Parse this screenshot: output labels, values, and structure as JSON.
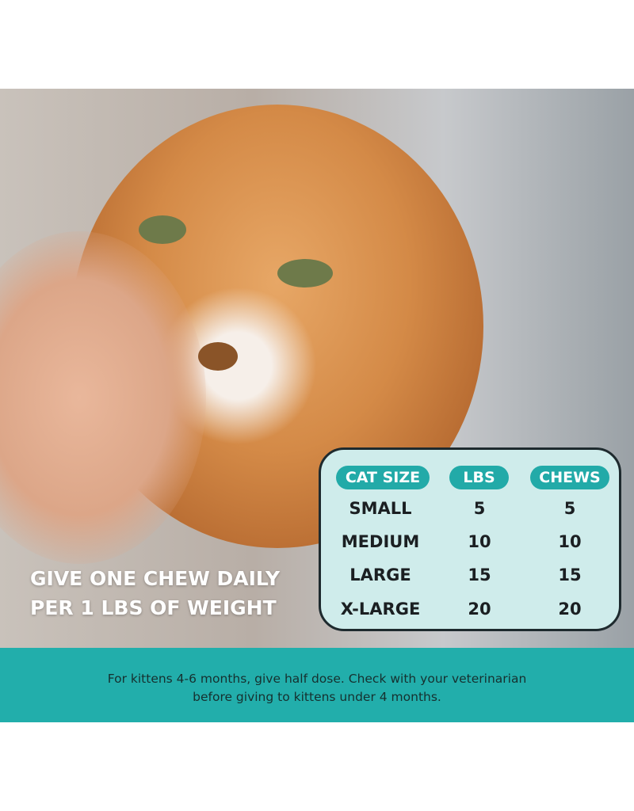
{
  "headline": {
    "line1": "GIVE ONE CHEW DAILY",
    "line2": "PER 1 LBS OF WEIGHT"
  },
  "dosage_table": {
    "headers": [
      "CAT SIZE",
      "LBS",
      "CHEWS"
    ],
    "rows": [
      [
        "SMALL",
        "5",
        "5"
      ],
      [
        "MEDIUM",
        "10",
        "10"
      ],
      [
        "LARGE",
        "15",
        "15"
      ],
      [
        "X-LARGE",
        "20",
        "20"
      ]
    ]
  },
  "footnote": {
    "line1": "For kittens 4-6 months, give half dose. Check with your veterinarian",
    "line2": "before giving to kittens under 4 months."
  },
  "colors": {
    "accent": "#22aeab",
    "table_bg": "#cfeceb"
  }
}
